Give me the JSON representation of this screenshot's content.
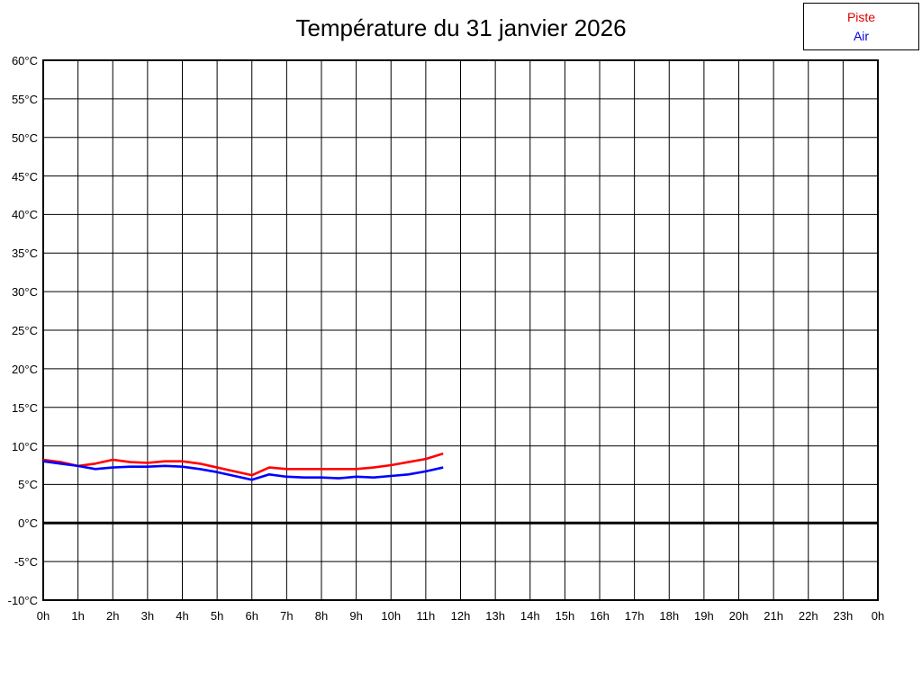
{
  "title": "Température du 31 janvier 2026",
  "legend": {
    "items": [
      {
        "label": "Piste",
        "color": "#e00000"
      },
      {
        "label": "Air",
        "color": "#0000e0"
      }
    ]
  },
  "chart_data": {
    "type": "line",
    "title": "Température du 31 janvier 2026",
    "xlabel": "",
    "ylabel": "",
    "xlim": [
      0,
      24
    ],
    "ylim": [
      -10,
      60
    ],
    "y_step": 5,
    "grid": true,
    "grid_color": "#000000",
    "background_color": "#ffffff",
    "zero_line": {
      "value": 0,
      "color": "#000000",
      "width": 3
    },
    "legend_position": "top-right-outside",
    "x_tick_labels": [
      "0h",
      "1h",
      "2h",
      "3h",
      "4h",
      "5h",
      "6h",
      "7h",
      "8h",
      "9h",
      "10h",
      "11h",
      "12h",
      "13h",
      "14h",
      "15h",
      "16h",
      "17h",
      "18h",
      "19h",
      "20h",
      "21h",
      "22h",
      "23h",
      "0h"
    ],
    "y_tick_labels": [
      "60°C",
      "55°C",
      "50°C",
      "45°C",
      "40°C",
      "35°C",
      "30°C",
      "25°C",
      "20°C",
      "15°C",
      "10°C",
      "5°C",
      "0°C",
      "-5°C",
      "-10°C"
    ],
    "series": [
      {
        "name": "Piste",
        "color": "#ff0000",
        "x": [
          0,
          0.5,
          1,
          1.5,
          2,
          2.5,
          3,
          3.5,
          4,
          4.5,
          5,
          5.5,
          6,
          6.5,
          7,
          7.5,
          8,
          8.5,
          9,
          9.5,
          10,
          10.5,
          11,
          11.5
        ],
        "y": [
          8.2,
          7.9,
          7.4,
          7.7,
          8.2,
          7.9,
          7.8,
          8.0,
          8.0,
          7.7,
          7.2,
          6.7,
          6.2,
          7.2,
          7.0,
          7.0,
          7.0,
          7.0,
          7.0,
          7.2,
          7.5,
          7.9,
          8.3,
          9.0
        ]
      },
      {
        "name": "Air",
        "color": "#0000ff",
        "x": [
          0,
          0.5,
          1,
          1.5,
          2,
          2.5,
          3,
          3.5,
          4,
          4.5,
          5,
          5.5,
          6,
          6.5,
          7,
          7.5,
          8,
          8.5,
          9,
          9.5,
          10,
          10.5,
          11,
          11.5
        ],
        "y": [
          8.0,
          7.7,
          7.4,
          7.0,
          7.2,
          7.3,
          7.3,
          7.4,
          7.3,
          7.0,
          6.6,
          6.1,
          5.6,
          6.3,
          6.0,
          5.9,
          5.9,
          5.8,
          6.0,
          5.9,
          6.1,
          6.3,
          6.7,
          7.2
        ]
      }
    ]
  }
}
